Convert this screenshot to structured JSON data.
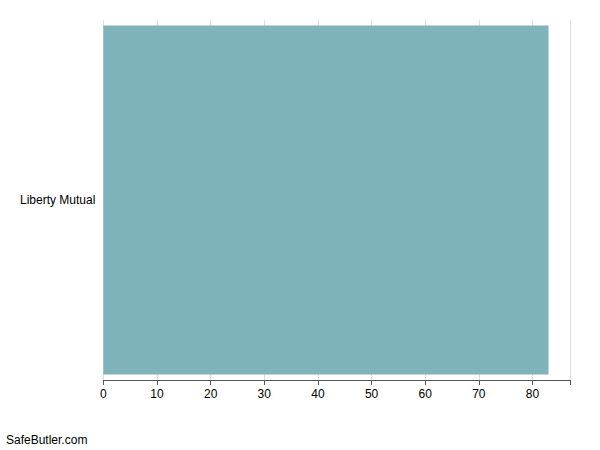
{
  "chart_data": {
    "type": "bar",
    "orientation": "horizontal",
    "categories": [
      "Liberty Mutual"
    ],
    "values": [
      83
    ],
    "color": "#7fb3bc",
    "xlim": [
      0,
      87
    ],
    "xticks": [
      0,
      10,
      20,
      30,
      40,
      50,
      60,
      70,
      80
    ],
    "grid": true,
    "annotations": [
      "SafeButler.com"
    ]
  }
}
